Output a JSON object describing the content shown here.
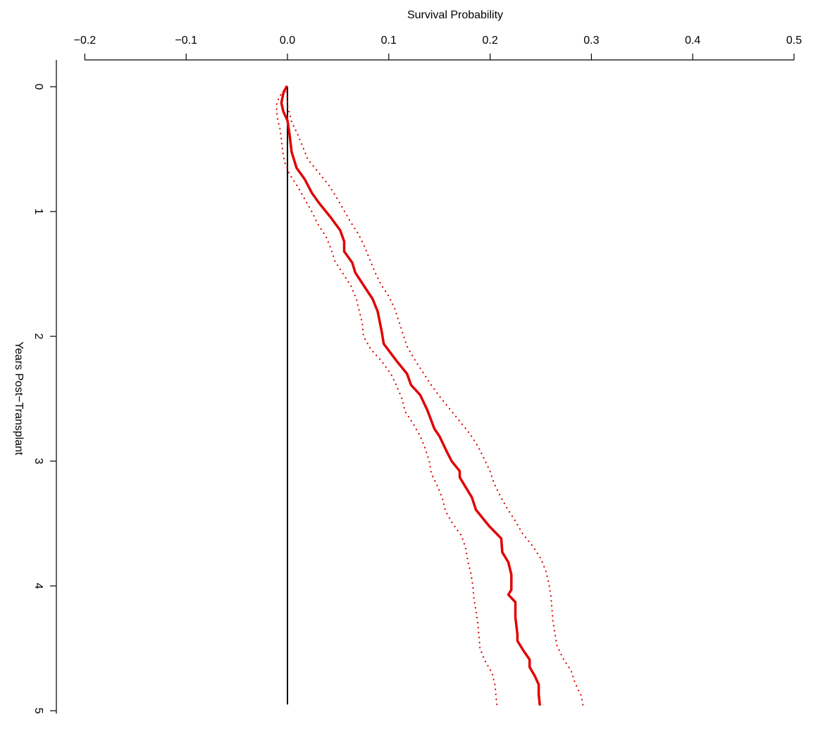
{
  "chart_data": {
    "type": "line",
    "title": "",
    "xlabel": "Survival Probability",
    "ylabel": "Years Post−Transplant",
    "x_axis_position": "top",
    "xlim": [
      -0.22,
      0.52
    ],
    "ylim": [
      0,
      5
    ],
    "y_reversed": true,
    "grid": false,
    "legend": "none",
    "x_ticks": [
      {
        "value": -0.2,
        "label": "−0.2"
      },
      {
        "value": -0.1,
        "label": "−0.1"
      },
      {
        "value": 0.0,
        "label": "0.0"
      },
      {
        "value": 0.1,
        "label": "0.1"
      },
      {
        "value": 0.2,
        "label": "0.2"
      },
      {
        "value": 0.3,
        "label": "0.3"
      },
      {
        "value": 0.4,
        "label": "0.4"
      },
      {
        "value": 0.5,
        "label": "0.5"
      }
    ],
    "y_ticks": [
      {
        "value": 0,
        "label": "0"
      },
      {
        "value": 1,
        "label": "1"
      },
      {
        "value": 2,
        "label": "2"
      },
      {
        "value": 3,
        "label": "3"
      },
      {
        "value": 4,
        "label": "4"
      },
      {
        "value": 5,
        "label": "5"
      }
    ],
    "reference_line": {
      "x": 0.0,
      "y_range": [
        0,
        4.95
      ],
      "color": "#000000"
    },
    "series": [
      {
        "role": "estimate",
        "color": "#e00000",
        "style": "solid",
        "points": [
          [
            -0.001,
            0.0
          ],
          [
            -0.004,
            0.05
          ],
          [
            -0.006,
            0.13
          ],
          [
            -0.004,
            0.2
          ],
          [
            0.0,
            0.27
          ],
          [
            0.002,
            0.38
          ],
          [
            0.004,
            0.52
          ],
          [
            0.009,
            0.65
          ],
          [
            0.017,
            0.74
          ],
          [
            0.024,
            0.85
          ],
          [
            0.031,
            0.93
          ],
          [
            0.042,
            1.04
          ],
          [
            0.052,
            1.15
          ],
          [
            0.056,
            1.24
          ],
          [
            0.056,
            1.32
          ],
          [
            0.064,
            1.41
          ],
          [
            0.067,
            1.49
          ],
          [
            0.075,
            1.59
          ],
          [
            0.084,
            1.7
          ],
          [
            0.089,
            1.8
          ],
          [
            0.093,
            1.96
          ],
          [
            0.095,
            2.06
          ],
          [
            0.107,
            2.19
          ],
          [
            0.118,
            2.3
          ],
          [
            0.122,
            2.39
          ],
          [
            0.131,
            2.47
          ],
          [
            0.138,
            2.59
          ],
          [
            0.145,
            2.74
          ],
          [
            0.15,
            2.8
          ],
          [
            0.157,
            2.92
          ],
          [
            0.162,
            3.0
          ],
          [
            0.17,
            3.08
          ],
          [
            0.17,
            3.13
          ],
          [
            0.176,
            3.21
          ],
          [
            0.182,
            3.29
          ],
          [
            0.186,
            3.39
          ],
          [
            0.199,
            3.52
          ],
          [
            0.211,
            3.62
          ],
          [
            0.212,
            3.73
          ],
          [
            0.218,
            3.81
          ],
          [
            0.221,
            3.91
          ],
          [
            0.221,
            4.03
          ],
          [
            0.218,
            4.07
          ],
          [
            0.225,
            4.13
          ],
          [
            0.225,
            4.25
          ],
          [
            0.227,
            4.39
          ],
          [
            0.227,
            4.44
          ],
          [
            0.233,
            4.52
          ],
          [
            0.239,
            4.59
          ],
          [
            0.239,
            4.65
          ],
          [
            0.244,
            4.72
          ],
          [
            0.248,
            4.79
          ],
          [
            0.248,
            4.87
          ],
          [
            0.249,
            4.95
          ]
        ]
      },
      {
        "role": "lower-bound",
        "color": "#e00000",
        "style": "dotted",
        "points": [
          [
            -0.001,
            0.0
          ],
          [
            -0.008,
            0.08
          ],
          [
            -0.011,
            0.15
          ],
          [
            -0.01,
            0.25
          ],
          [
            -0.007,
            0.35
          ],
          [
            -0.005,
            0.5
          ],
          [
            -0.003,
            0.6
          ],
          [
            0.002,
            0.7
          ],
          [
            0.01,
            0.8
          ],
          [
            0.017,
            0.9
          ],
          [
            0.024,
            1.0
          ],
          [
            0.03,
            1.1
          ],
          [
            0.038,
            1.2
          ],
          [
            0.043,
            1.3
          ],
          [
            0.047,
            1.4
          ],
          [
            0.055,
            1.5
          ],
          [
            0.063,
            1.6
          ],
          [
            0.068,
            1.7
          ],
          [
            0.071,
            1.8
          ],
          [
            0.074,
            1.9
          ],
          [
            0.075,
            2.0
          ],
          [
            0.082,
            2.1
          ],
          [
            0.093,
            2.2
          ],
          [
            0.102,
            2.3
          ],
          [
            0.108,
            2.4
          ],
          [
            0.113,
            2.5
          ],
          [
            0.116,
            2.6
          ],
          [
            0.124,
            2.7
          ],
          [
            0.131,
            2.8
          ],
          [
            0.136,
            2.9
          ],
          [
            0.14,
            3.0
          ],
          [
            0.142,
            3.1
          ],
          [
            0.148,
            3.2
          ],
          [
            0.153,
            3.3
          ],
          [
            0.156,
            3.4
          ],
          [
            0.163,
            3.5
          ],
          [
            0.172,
            3.6
          ],
          [
            0.176,
            3.7
          ],
          [
            0.178,
            3.8
          ],
          [
            0.181,
            3.9
          ],
          [
            0.183,
            4.0
          ],
          [
            0.184,
            4.1
          ],
          [
            0.186,
            4.2
          ],
          [
            0.188,
            4.3
          ],
          [
            0.189,
            4.4
          ],
          [
            0.19,
            4.5
          ],
          [
            0.195,
            4.6
          ],
          [
            0.202,
            4.7
          ],
          [
            0.205,
            4.8
          ],
          [
            0.206,
            4.9
          ],
          [
            0.207,
            4.97
          ]
        ]
      },
      {
        "role": "upper-bound",
        "color": "#e00000",
        "style": "dotted",
        "points": [
          [
            -0.001,
            0.0
          ],
          [
            0.0,
            0.15
          ],
          [
            0.004,
            0.28
          ],
          [
            0.01,
            0.38
          ],
          [
            0.015,
            0.48
          ],
          [
            0.02,
            0.58
          ],
          [
            0.03,
            0.68
          ],
          [
            0.04,
            0.78
          ],
          [
            0.048,
            0.88
          ],
          [
            0.055,
            0.98
          ],
          [
            0.062,
            1.08
          ],
          [
            0.07,
            1.18
          ],
          [
            0.076,
            1.28
          ],
          [
            0.081,
            1.38
          ],
          [
            0.086,
            1.48
          ],
          [
            0.092,
            1.58
          ],
          [
            0.1,
            1.68
          ],
          [
            0.106,
            1.78
          ],
          [
            0.11,
            1.88
          ],
          [
            0.114,
            1.98
          ],
          [
            0.118,
            2.08
          ],
          [
            0.125,
            2.18
          ],
          [
            0.133,
            2.28
          ],
          [
            0.141,
            2.38
          ],
          [
            0.15,
            2.48
          ],
          [
            0.16,
            2.58
          ],
          [
            0.17,
            2.68
          ],
          [
            0.18,
            2.78
          ],
          [
            0.188,
            2.88
          ],
          [
            0.194,
            2.98
          ],
          [
            0.2,
            3.08
          ],
          [
            0.204,
            3.18
          ],
          [
            0.21,
            3.28
          ],
          [
            0.217,
            3.38
          ],
          [
            0.225,
            3.48
          ],
          [
            0.232,
            3.58
          ],
          [
            0.242,
            3.68
          ],
          [
            0.25,
            3.78
          ],
          [
            0.255,
            3.88
          ],
          [
            0.258,
            3.98
          ],
          [
            0.26,
            4.08
          ],
          [
            0.261,
            4.18
          ],
          [
            0.262,
            4.28
          ],
          [
            0.264,
            4.38
          ],
          [
            0.266,
            4.48
          ],
          [
            0.272,
            4.58
          ],
          [
            0.28,
            4.68
          ],
          [
            0.284,
            4.78
          ],
          [
            0.29,
            4.88
          ],
          [
            0.292,
            4.97
          ]
        ]
      }
    ]
  }
}
